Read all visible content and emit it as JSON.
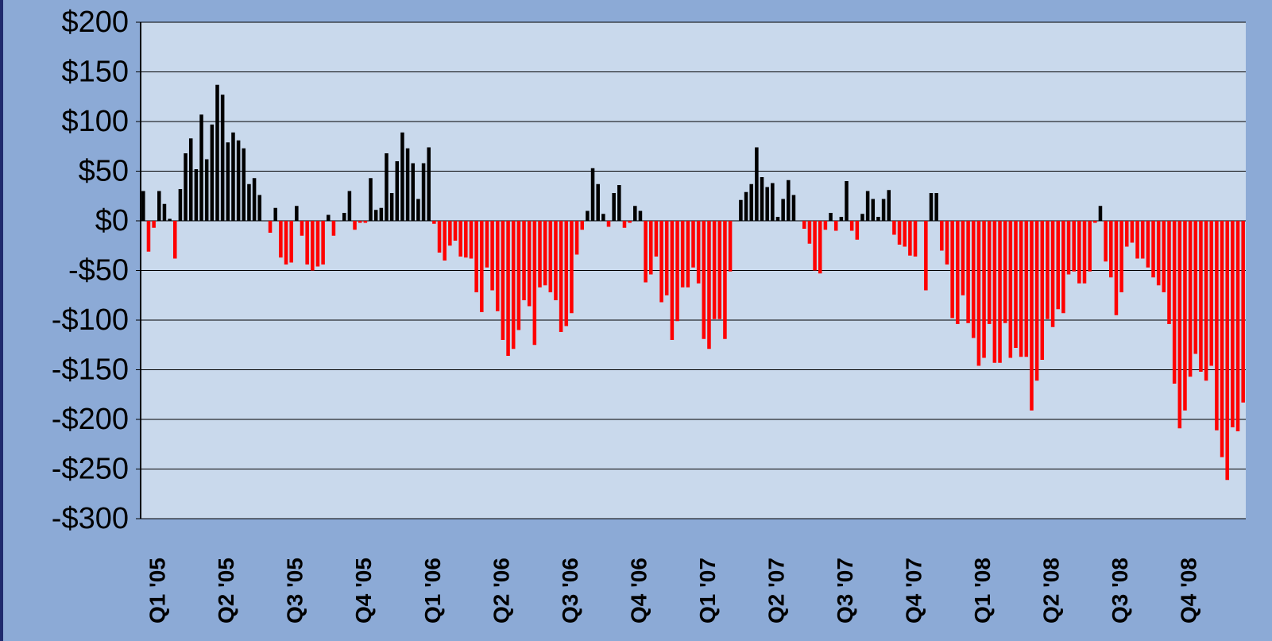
{
  "chart_data": {
    "type": "bar",
    "categories": [
      null,
      null,
      null,
      "Q1 '05",
      null,
      null,
      null,
      null,
      null,
      null,
      null,
      null,
      null,
      null,
      null,
      null,
      "Q2 '05",
      null,
      null,
      null,
      null,
      null,
      null,
      null,
      null,
      null,
      null,
      null,
      null,
      "Q3 '05",
      null,
      null,
      null,
      null,
      null,
      null,
      null,
      null,
      null,
      null,
      null,
      null,
      "Q4 '05",
      null,
      null,
      null,
      null,
      null,
      null,
      null,
      null,
      null,
      null,
      null,
      null,
      "Q1 '06",
      null,
      null,
      null,
      null,
      null,
      null,
      null,
      null,
      null,
      null,
      null,
      null,
      "Q2 '06",
      null,
      null,
      null,
      null,
      null,
      null,
      null,
      null,
      null,
      null,
      null,
      null,
      "Q3 '06",
      null,
      null,
      null,
      null,
      null,
      null,
      null,
      null,
      null,
      null,
      null,
      null,
      "Q4 '06",
      null,
      null,
      null,
      null,
      null,
      null,
      null,
      null,
      null,
      null,
      null,
      null,
      "Q1 '07",
      null,
      null,
      null,
      null,
      null,
      null,
      null,
      null,
      null,
      null,
      null,
      null,
      "Q2 '07",
      null,
      null,
      null,
      null,
      null,
      null,
      null,
      null,
      null,
      null,
      null,
      null,
      "Q3 '07",
      null,
      null,
      null,
      null,
      null,
      null,
      null,
      null,
      null,
      null,
      null,
      null,
      "Q4 '07",
      null,
      null,
      null,
      null,
      null,
      null,
      null,
      null,
      null,
      null,
      null,
      null,
      "Q1 '08",
      null,
      null,
      null,
      null,
      null,
      null,
      null,
      null,
      null,
      null,
      null,
      null,
      "Q2 '08",
      null,
      null,
      null,
      null,
      null,
      null,
      null,
      null,
      null,
      null,
      null,
      null,
      "Q3 '08",
      null,
      null,
      null,
      null,
      null,
      null,
      null,
      null,
      null,
      null,
      null,
      null,
      "Q4 '08",
      null,
      null,
      null,
      null,
      null,
      null,
      null,
      null,
      null,
      null
    ],
    "values": [
      30,
      -31,
      -7,
      30,
      17,
      2,
      -38,
      32,
      68,
      83,
      52,
      107,
      62,
      97,
      137,
      127,
      79,
      89,
      81,
      73,
      37,
      43,
      26,
      0,
      -12,
      13,
      -37,
      -44,
      -42,
      15,
      -15,
      -44,
      -50,
      -46,
      -44,
      6,
      -15,
      0,
      8,
      30,
      -9,
      -2,
      -2,
      43,
      11,
      13,
      68,
      28,
      60,
      89,
      73,
      58,
      22,
      58,
      74,
      -3,
      -32,
      -40,
      -25,
      -20,
      -36,
      -37,
      -38,
      -72,
      -92,
      -47,
      -70,
      -91,
      -120,
      -136,
      -129,
      -110,
      -80,
      -86,
      -125,
      -67,
      -65,
      -72,
      -80,
      -112,
      -106,
      -93,
      -34,
      -9,
      10,
      53,
      37,
      7,
      -6,
      28,
      36,
      -7,
      -2,
      15,
      10,
      -62,
      -54,
      -36,
      -82,
      -75,
      -120,
      -101,
      -67,
      -67,
      -47,
      -63,
      -119,
      -129,
      -99,
      -99,
      -119,
      -51,
      0,
      21,
      29,
      37,
      74,
      44,
      34,
      38,
      4,
      22,
      41,
      26,
      0,
      -8,
      -23,
      -50,
      -53,
      -9,
      8,
      -10,
      4,
      40,
      -10,
      -19,
      7,
      30,
      22,
      4,
      22,
      31,
      -14,
      -24,
      -26,
      -35,
      -36,
      0,
      -70,
      28,
      28,
      -30,
      -44,
      -98,
      -104,
      -75,
      -103,
      -118,
      -146,
      -138,
      -104,
      -143,
      -143,
      -103,
      -138,
      -128,
      -137,
      -137,
      -191,
      -161,
      -140,
      -99,
      -107,
      -89,
      -93,
      -54,
      -51,
      -63,
      -63,
      -51,
      -2,
      15,
      -41,
      -57,
      -95,
      -72,
      -26,
      -22,
      -38,
      -38,
      -47,
      -57,
      -65,
      -72,
      -104,
      -164,
      -209,
      -191,
      -157,
      -134,
      -152,
      -161,
      -146,
      -211,
      -238,
      -261,
      -208,
      -212,
      -183
    ],
    "colors": {
      "positive": "#000000",
      "negative": "#ff0000"
    },
    "ylim": [
      -300,
      200
    ],
    "yticks": [
      {
        "value": -300,
        "label": "-$300"
      },
      {
        "value": -250,
        "label": "-$250"
      },
      {
        "value": -200,
        "label": "-$200"
      },
      {
        "value": -150,
        "label": "-$150"
      },
      {
        "value": -100,
        "label": "-$100"
      },
      {
        "value": -50,
        "label": "-$50"
      },
      {
        "value": 0,
        "label": "$0"
      },
      {
        "value": 50,
        "label": "$50"
      },
      {
        "value": 100,
        "label": "$100"
      },
      {
        "value": 150,
        "label": "$150"
      },
      {
        "value": 200,
        "label": "$200"
      }
    ],
    "grid": true
  }
}
